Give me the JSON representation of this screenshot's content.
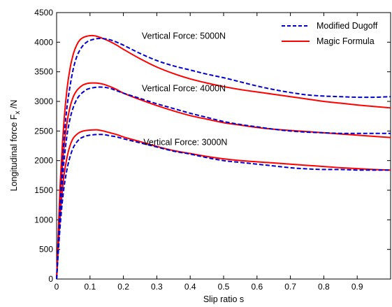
{
  "chart_data": {
    "type": "line",
    "xlabel": "Slip ratio s",
    "ylabel": {
      "main": "Longitudinal force F",
      "sub": "x",
      "unit": " /N"
    },
    "xlim": [
      0,
      1
    ],
    "ylim": [
      0,
      4500
    ],
    "xticks": [
      0,
      0.1,
      0.2,
      0.3,
      0.4,
      0.5,
      0.6,
      0.7,
      0.8,
      0.9
    ],
    "xtick_labels": [
      "0",
      "0.1",
      "0.2",
      "0.3",
      "0.4",
      "0.5",
      "0.6",
      "0.7",
      "0.8",
      "0.9"
    ],
    "yticks": [
      0,
      500,
      1000,
      1500,
      2000,
      2500,
      3000,
      3500,
      4000,
      4500
    ],
    "ytick_labels": [
      "0",
      "500",
      "1000",
      "1500",
      "2000",
      "2500",
      "3000",
      "3500",
      "4000",
      "4500"
    ],
    "grid": false,
    "legend": {
      "position": "top-right",
      "entries": [
        {
          "label": "Modified Dugoff",
          "style": "dashed",
          "color": "#0000CC"
        },
        {
          "label": "Magic Formula",
          "style": "solid",
          "color": "#FF0000"
        }
      ]
    },
    "annotations": [
      {
        "text": "Vertical Force: 5000N",
        "x": 0.255,
        "y": 4060
      },
      {
        "text": "Vertical Force: 4000N",
        "x": 0.255,
        "y": 3170
      },
      {
        "text": "Vertical Force: 3000N",
        "x": 0.26,
        "y": 2260
      }
    ],
    "series": [
      {
        "group": "5000N",
        "model": "Magic Formula",
        "color": "#FF0000",
        "style": "solid",
        "x": [
          0,
          0.01,
          0.02,
          0.03,
          0.04,
          0.05,
          0.06,
          0.07,
          0.08,
          0.09,
          0.1,
          0.11,
          0.12,
          0.14,
          0.16,
          0.18,
          0.2,
          0.25,
          0.3,
          0.35,
          0.4,
          0.45,
          0.5,
          0.55,
          0.6,
          0.65,
          0.7,
          0.75,
          0.8,
          0.85,
          0.9,
          0.95,
          1.0
        ],
        "y": [
          0,
          1500,
          2500,
          3150,
          3550,
          3800,
          3950,
          4040,
          4080,
          4100,
          4110,
          4110,
          4100,
          4060,
          4010,
          3950,
          3880,
          3720,
          3580,
          3470,
          3380,
          3310,
          3250,
          3200,
          3160,
          3120,
          3080,
          3040,
          3000,
          2970,
          2940,
          2915,
          2890
        ]
      },
      {
        "group": "5000N",
        "model": "Modified Dugoff",
        "color": "#0000CC",
        "style": "dashed",
        "x": [
          0,
          0.01,
          0.02,
          0.03,
          0.04,
          0.05,
          0.06,
          0.07,
          0.08,
          0.09,
          0.1,
          0.12,
          0.14,
          0.16,
          0.18,
          0.2,
          0.25,
          0.3,
          0.35,
          0.4,
          0.45,
          0.5,
          0.55,
          0.6,
          0.65,
          0.7,
          0.75,
          0.8,
          0.85,
          0.9,
          0.95,
          1.0
        ],
        "y": [
          0,
          1200,
          2200,
          2850,
          3250,
          3550,
          3750,
          3870,
          3950,
          4000,
          4030,
          4060,
          4060,
          4040,
          4000,
          3950,
          3810,
          3690,
          3600,
          3530,
          3460,
          3400,
          3330,
          3260,
          3200,
          3150,
          3110,
          3090,
          3080,
          3070,
          3070,
          3080
        ]
      },
      {
        "group": "4000N",
        "model": "Magic Formula",
        "color": "#FF0000",
        "style": "solid",
        "x": [
          0,
          0.01,
          0.02,
          0.03,
          0.04,
          0.05,
          0.06,
          0.07,
          0.08,
          0.09,
          0.1,
          0.12,
          0.14,
          0.16,
          0.18,
          0.2,
          0.25,
          0.3,
          0.35,
          0.4,
          0.45,
          0.5,
          0.55,
          0.6,
          0.65,
          0.7,
          0.75,
          0.8,
          0.85,
          0.9,
          0.95,
          1.0
        ],
        "y": [
          0,
          1250,
          2100,
          2600,
          2900,
          3080,
          3180,
          3240,
          3280,
          3300,
          3310,
          3310,
          3290,
          3250,
          3200,
          3140,
          3030,
          2930,
          2840,
          2760,
          2700,
          2640,
          2600,
          2560,
          2530,
          2510,
          2490,
          2470,
          2450,
          2430,
          2410,
          2390
        ]
      },
      {
        "group": "4000N",
        "model": "Modified Dugoff",
        "color": "#0000CC",
        "style": "dashed",
        "x": [
          0,
          0.01,
          0.02,
          0.03,
          0.04,
          0.05,
          0.06,
          0.07,
          0.08,
          0.09,
          0.1,
          0.12,
          0.14,
          0.16,
          0.18,
          0.2,
          0.25,
          0.3,
          0.35,
          0.4,
          0.45,
          0.5,
          0.55,
          0.6,
          0.65,
          0.7,
          0.75,
          0.8,
          0.85,
          0.9,
          0.95,
          1.0
        ],
        "y": [
          0,
          1050,
          1850,
          2380,
          2700,
          2900,
          3030,
          3110,
          3160,
          3200,
          3220,
          3240,
          3240,
          3220,
          3180,
          3140,
          3050,
          2960,
          2880,
          2800,
          2730,
          2660,
          2610,
          2570,
          2530,
          2500,
          2480,
          2470,
          2460,
          2460,
          2460,
          2460
        ]
      },
      {
        "group": "3000N",
        "model": "Magic Formula",
        "color": "#FF0000",
        "style": "solid",
        "x": [
          0,
          0.01,
          0.02,
          0.03,
          0.04,
          0.05,
          0.06,
          0.07,
          0.08,
          0.09,
          0.1,
          0.12,
          0.14,
          0.16,
          0.18,
          0.2,
          0.25,
          0.3,
          0.35,
          0.4,
          0.45,
          0.5,
          0.55,
          0.6,
          0.65,
          0.7,
          0.75,
          0.8,
          0.85,
          0.9,
          0.95,
          1.0
        ],
        "y": [
          0,
          1000,
          1650,
          2020,
          2250,
          2380,
          2440,
          2480,
          2500,
          2510,
          2515,
          2520,
          2500,
          2470,
          2440,
          2400,
          2320,
          2240,
          2170,
          2120,
          2070,
          2030,
          2000,
          1980,
          1960,
          1940,
          1920,
          1900,
          1880,
          1865,
          1850,
          1840
        ]
      },
      {
        "group": "3000N",
        "model": "Modified Dugoff",
        "color": "#0000CC",
        "style": "dashed",
        "x": [
          0,
          0.01,
          0.02,
          0.03,
          0.04,
          0.05,
          0.06,
          0.07,
          0.08,
          0.09,
          0.1,
          0.12,
          0.14,
          0.16,
          0.18,
          0.2,
          0.25,
          0.3,
          0.35,
          0.4,
          0.45,
          0.5,
          0.55,
          0.6,
          0.65,
          0.7,
          0.75,
          0.8,
          0.85,
          0.9,
          0.95,
          1.0
        ],
        "y": [
          0,
          850,
          1450,
          1820,
          2060,
          2220,
          2310,
          2370,
          2400,
          2420,
          2430,
          2440,
          2440,
          2420,
          2400,
          2370,
          2300,
          2230,
          2160,
          2110,
          2050,
          2000,
          1970,
          1940,
          1910,
          1880,
          1860,
          1850,
          1850,
          1840,
          1840,
          1840
        ]
      }
    ]
  }
}
